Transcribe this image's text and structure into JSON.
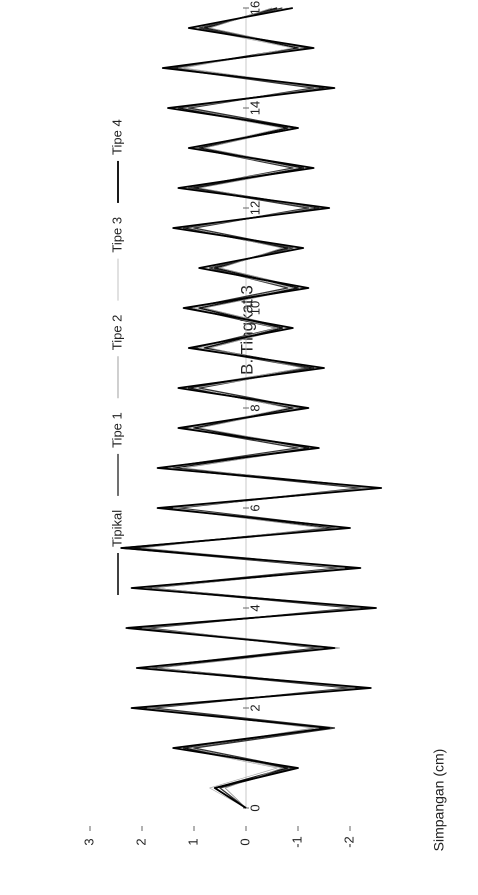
{
  "chart_data": {
    "type": "line",
    "title": "B. Tingkat 3",
    "ylabel": "Simpangan (cm)",
    "x": [
      0,
      0.4,
      0.8,
      1.2,
      1.6,
      2,
      2.4,
      2.8,
      3.2,
      3.6,
      4,
      4.4,
      4.8,
      5.2,
      5.6,
      6,
      6.4,
      6.8,
      7.2,
      7.6,
      8,
      8.4,
      8.8,
      9.2,
      9.6,
      10,
      10.4,
      10.8,
      11.2,
      11.6,
      12,
      12.4,
      12.8,
      13.2,
      13.6,
      14,
      14.4,
      14.8,
      15.2,
      15.6,
      16
    ],
    "xlim": [
      0,
      16
    ],
    "xticks": [
      0,
      2,
      4,
      6,
      8,
      10,
      12,
      14,
      16
    ],
    "ylim": [
      -3,
      3.5
    ],
    "yticks": [
      3,
      2,
      1,
      0,
      -1,
      -2
    ],
    "series": [
      {
        "name": "Tipikal",
        "color": "#111111",
        "values": [
          0,
          0.6,
          -0.8,
          1.2,
          -1.5,
          2.0,
          -2.2,
          1.8,
          -1.6,
          2.1,
          -2.3,
          1.9,
          -2.0,
          2.2,
          -1.7,
          1.5,
          -2.5,
          1.4,
          -1.2,
          1.0,
          -0.9,
          1.1,
          -1.3,
          0.8,
          -0.7,
          0.9,
          -1.0,
          0.6,
          -0.8,
          1.2,
          -1.4,
          1.0,
          -1.1,
          0.9,
          -0.8,
          1.3,
          -1.5,
          1.4,
          -1.0,
          0.8,
          -0.6
        ]
      },
      {
        "name": "Tipe 1",
        "color": "#333333",
        "values": [
          0,
          0.5,
          -0.9,
          1.0,
          -1.7,
          1.8,
          -2.0,
          2.0,
          -1.4,
          1.9,
          -2.1,
          2.1,
          -1.8,
          2.4,
          -1.9,
          1.3,
          -2.2,
          1.6,
          -1.0,
          1.2,
          -1.1,
          0.9,
          -1.2,
          1.0,
          -0.6,
          1.1,
          -0.8,
          0.7,
          -0.9,
          1.0,
          -1.2,
          1.1,
          -0.9,
          1.0,
          -1.0,
          1.1,
          -1.3,
          1.5,
          -1.2,
          0.9,
          -0.7
        ]
      },
      {
        "name": "Tipe 2",
        "color": "#888888",
        "values": [
          0,
          0.4,
          -0.7,
          1.1,
          -1.3,
          1.9,
          -2.1,
          1.7,
          -1.8,
          2.0,
          -2.2,
          1.8,
          -2.1,
          2.0,
          -1.5,
          1.6,
          -2.3,
          1.2,
          -1.3,
          0.9,
          -1.0,
          1.2,
          -1.1,
          0.7,
          -0.8,
          0.8,
          -1.1,
          0.5,
          -0.7,
          1.1,
          -1.3,
          0.9,
          -1.2,
          0.8,
          -0.9,
          1.2,
          -1.4,
          1.3,
          -1.1,
          0.7,
          -0.5
        ]
      },
      {
        "name": "Tipe 3",
        "color": "#aaaaaa",
        "values": [
          0,
          0.7,
          -0.6,
          1.3,
          -1.4,
          2.1,
          -2.3,
          1.9,
          -1.5,
          2.2,
          -2.4,
          2.0,
          -1.9,
          2.3,
          -1.8,
          1.4,
          -2.4,
          1.5,
          -1.1,
          1.1,
          -0.8,
          1.0,
          -1.4,
          0.9,
          -0.6,
          1.0,
          -0.9,
          0.8,
          -1.0,
          1.3,
          -1.5,
          1.2,
          -1.0,
          1.0,
          -0.7,
          1.4,
          -1.6,
          1.2,
          -0.9,
          1.0,
          -0.8
        ]
      },
      {
        "name": "Tipe 4",
        "color": "#000000",
        "values": [
          0,
          0.6,
          -1.0,
          1.4,
          -1.6,
          2.2,
          -2.4,
          2.1,
          -1.7,
          2.3,
          -2.5,
          2.2,
          -2.2,
          2.4,
          -2.0,
          1.7,
          -2.6,
          1.7,
          -1.4,
          1.3,
          -1.2,
          1.3,
          -1.5,
          1.1,
          -0.9,
          1.2,
          -1.2,
          0.9,
          -1.1,
          1.4,
          -1.6,
          1.3,
          -1.3,
          1.1,
          -1.0,
          1.5,
          -1.7,
          1.6,
          -1.3,
          1.1,
          -0.9
        ]
      }
    ]
  }
}
